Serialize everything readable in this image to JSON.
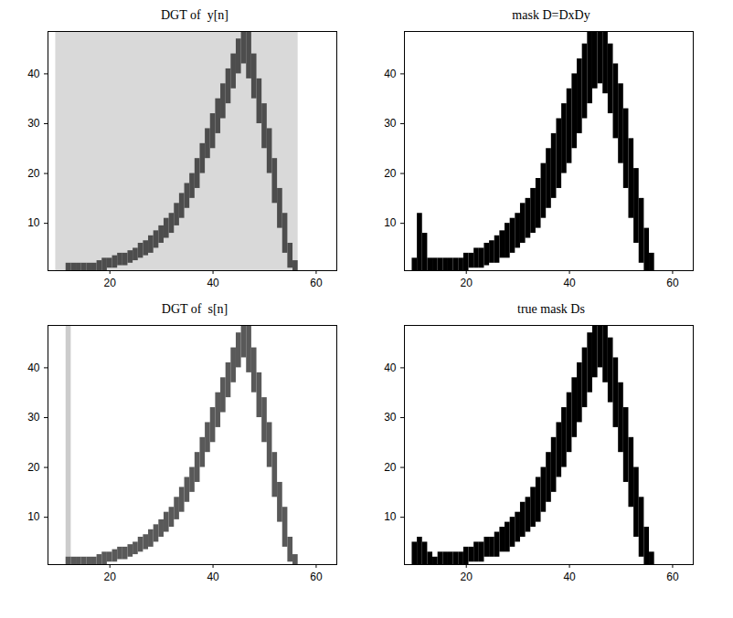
{
  "chart_data": [
    {
      "type": "heatmap",
      "title": "DGT of  y[n]",
      "xlim": [
        8,
        64
      ],
      "ylim": [
        0.5,
        48.5
      ],
      "xticks": [
        20,
        40,
        60
      ],
      "yticks": [
        10,
        20,
        30,
        40
      ],
      "zlim": [
        0,
        1
      ],
      "cells": [
        [
          9.5,
          56.5,
          0.5,
          48.5,
          0.15
        ],
        [
          11.5,
          12.5,
          0.5,
          2,
          0.7
        ],
        [
          12.5,
          13.5,
          0.5,
          2,
          0.7
        ],
        [
          13.5,
          14.5,
          0.5,
          2,
          0.7
        ],
        [
          14.5,
          15.5,
          0.5,
          2,
          0.7
        ],
        [
          15.5,
          16.5,
          0.5,
          2,
          0.7
        ],
        [
          16.5,
          17.5,
          0.5,
          2,
          0.7
        ],
        [
          17.5,
          18.5,
          0.5,
          2.5,
          0.7
        ],
        [
          18.5,
          19.5,
          0.5,
          3,
          0.7
        ],
        [
          19.5,
          20.5,
          1,
          3,
          0.7
        ],
        [
          20.5,
          21.5,
          1,
          3.5,
          0.7
        ],
        [
          21.5,
          22.5,
          1.5,
          4,
          0.7
        ],
        [
          22.5,
          23.5,
          1.5,
          4,
          0.7
        ],
        [
          23.5,
          24.5,
          2,
          4.5,
          0.7
        ],
        [
          24.5,
          25.5,
          2.5,
          5,
          0.7
        ],
        [
          25.5,
          26.5,
          3,
          6,
          0.7
        ],
        [
          26.5,
          27.5,
          3.5,
          6.5,
          0.7
        ],
        [
          27.5,
          28.5,
          4,
          7.5,
          0.7
        ],
        [
          28.5,
          29.5,
          5,
          8.5,
          0.7
        ],
        [
          29.5,
          30.5,
          6,
          9.5,
          0.7
        ],
        [
          30.5,
          31.5,
          7,
          11,
          0.7
        ],
        [
          31.5,
          32.5,
          8,
          12,
          0.7
        ],
        [
          32.5,
          33.5,
          9.5,
          14,
          0.7
        ],
        [
          33.5,
          34.5,
          11,
          16,
          0.7
        ],
        [
          34.5,
          35.5,
          13,
          18,
          0.7
        ],
        [
          35.5,
          36.5,
          15,
          20,
          0.7
        ],
        [
          36.5,
          37.5,
          17,
          23,
          0.7
        ],
        [
          37.5,
          38.5,
          20,
          26,
          0.7
        ],
        [
          38.5,
          39.5,
          23,
          29,
          0.7
        ],
        [
          39.5,
          40.5,
          25,
          32,
          0.7
        ],
        [
          40.5,
          41.5,
          28,
          35,
          0.7
        ],
        [
          41.5,
          42.5,
          31,
          38,
          0.7
        ],
        [
          42.5,
          43.5,
          34,
          41,
          0.7
        ],
        [
          43.5,
          44.5,
          37,
          44,
          0.7
        ],
        [
          44.5,
          45.5,
          40,
          47,
          0.7
        ],
        [
          45.5,
          46.5,
          42,
          48.5,
          0.7
        ],
        [
          46.5,
          47.5,
          39,
          48.5,
          0.7
        ],
        [
          47.5,
          48.5,
          35,
          44,
          0.7
        ],
        [
          48.5,
          49.5,
          30,
          39,
          0.7
        ],
        [
          49.5,
          50.5,
          25,
          34,
          0.7
        ],
        [
          50.5,
          51.5,
          20,
          29,
          0.7
        ],
        [
          51.5,
          52.5,
          14,
          23,
          0.7
        ],
        [
          52.5,
          53.5,
          9,
          17,
          0.7
        ],
        [
          53.5,
          54.5,
          4,
          12,
          0.7
        ],
        [
          54.5,
          55.5,
          1,
          6,
          0.7
        ],
        [
          55.5,
          56.5,
          0.5,
          2.5,
          0.7
        ]
      ]
    },
    {
      "type": "mask",
      "title": "mask D=DxDy",
      "xlim": [
        8,
        64
      ],
      "ylim": [
        0.5,
        48.5
      ],
      "xticks": [
        20,
        40,
        60
      ],
      "yticks": [
        10,
        20,
        30,
        40
      ],
      "color": "#000000",
      "cells": [
        [
          10,
          0.5,
          3
        ],
        [
          11,
          0.5,
          12
        ],
        [
          12,
          0.5,
          8
        ],
        [
          13,
          0.5,
          3
        ],
        [
          14,
          0.5,
          3
        ],
        [
          15,
          0.5,
          3
        ],
        [
          16,
          0.5,
          3
        ],
        [
          17,
          0.5,
          3
        ],
        [
          18,
          0.5,
          3
        ],
        [
          19,
          0.5,
          3
        ],
        [
          20,
          0.5,
          4
        ],
        [
          21,
          1,
          4
        ],
        [
          22,
          1,
          5
        ],
        [
          23,
          1,
          5
        ],
        [
          24,
          1.5,
          6
        ],
        [
          25,
          2,
          6.5
        ],
        [
          26,
          2,
          7.5
        ],
        [
          27,
          3,
          8.5
        ],
        [
          28,
          3,
          10
        ],
        [
          29,
          4,
          11
        ],
        [
          30,
          5,
          12
        ],
        [
          31,
          6,
          14
        ],
        [
          32,
          7,
          15
        ],
        [
          33,
          8,
          17
        ],
        [
          34,
          9,
          19
        ],
        [
          35,
          11,
          22
        ],
        [
          36,
          13,
          25
        ],
        [
          37,
          15,
          28
        ],
        [
          38,
          17,
          31
        ],
        [
          39,
          20,
          34
        ],
        [
          40,
          22,
          37
        ],
        [
          41,
          25,
          40
        ],
        [
          42,
          28,
          43
        ],
        [
          43,
          31,
          46
        ],
        [
          44,
          34,
          48.5
        ],
        [
          45,
          37,
          48.5
        ],
        [
          46,
          38,
          48.5
        ],
        [
          47,
          36,
          48.5
        ],
        [
          48,
          32,
          46
        ],
        [
          49,
          27,
          42
        ],
        [
          50,
          22,
          38
        ],
        [
          51,
          17,
          33
        ],
        [
          52,
          11,
          27
        ],
        [
          53,
          6,
          21
        ],
        [
          54,
          2,
          15
        ],
        [
          55,
          0.5,
          9
        ],
        [
          56,
          0.5,
          4
        ]
      ]
    },
    {
      "type": "heatmap",
      "title": "DGT of  s[n]",
      "xlim": [
        8,
        64
      ],
      "ylim": [
        0.5,
        48.5
      ],
      "xticks": [
        20,
        40,
        60
      ],
      "yticks": [
        10,
        20,
        30,
        40
      ],
      "zlim": [
        0,
        1
      ],
      "cells": [
        [
          11.5,
          12.5,
          0.5,
          48.5,
          0.2
        ],
        [
          11.5,
          12.5,
          0.5,
          2,
          0.65
        ],
        [
          12.5,
          13.5,
          0.5,
          2,
          0.65
        ],
        [
          13.5,
          14.5,
          0.5,
          2,
          0.65
        ],
        [
          14.5,
          15.5,
          0.5,
          2,
          0.65
        ],
        [
          15.5,
          16.5,
          0.5,
          2,
          0.65
        ],
        [
          16.5,
          17.5,
          0.5,
          2,
          0.65
        ],
        [
          17.5,
          18.5,
          0.5,
          2.5,
          0.65
        ],
        [
          18.5,
          19.5,
          0.5,
          3,
          0.65
        ],
        [
          19.5,
          20.5,
          1,
          3,
          0.65
        ],
        [
          20.5,
          21.5,
          1,
          3.5,
          0.65
        ],
        [
          21.5,
          22.5,
          1.5,
          4,
          0.65
        ],
        [
          22.5,
          23.5,
          1.5,
          4,
          0.65
        ],
        [
          23.5,
          24.5,
          2,
          4.5,
          0.65
        ],
        [
          24.5,
          25.5,
          2.5,
          5,
          0.65
        ],
        [
          25.5,
          26.5,
          3,
          6,
          0.65
        ],
        [
          26.5,
          27.5,
          3.5,
          6.5,
          0.65
        ],
        [
          27.5,
          28.5,
          4,
          7.5,
          0.65
        ],
        [
          28.5,
          29.5,
          5,
          8.5,
          0.65
        ],
        [
          29.5,
          30.5,
          6,
          9.5,
          0.65
        ],
        [
          30.5,
          31.5,
          7,
          11,
          0.65
        ],
        [
          31.5,
          32.5,
          8,
          12,
          0.65
        ],
        [
          32.5,
          33.5,
          9.5,
          14,
          0.65
        ],
        [
          33.5,
          34.5,
          11,
          16,
          0.65
        ],
        [
          34.5,
          35.5,
          13,
          18,
          0.65
        ],
        [
          35.5,
          36.5,
          15,
          20,
          0.65
        ],
        [
          36.5,
          37.5,
          17,
          23,
          0.65
        ],
        [
          37.5,
          38.5,
          20,
          26,
          0.65
        ],
        [
          38.5,
          39.5,
          23,
          29,
          0.65
        ],
        [
          39.5,
          40.5,
          25,
          32,
          0.65
        ],
        [
          40.5,
          41.5,
          28,
          35,
          0.65
        ],
        [
          41.5,
          42.5,
          31,
          38,
          0.65
        ],
        [
          42.5,
          43.5,
          34,
          41,
          0.65
        ],
        [
          43.5,
          44.5,
          37,
          44,
          0.65
        ],
        [
          44.5,
          45.5,
          40,
          47,
          0.65
        ],
        [
          45.5,
          46.5,
          42,
          48.5,
          0.65
        ],
        [
          46.5,
          47.5,
          39,
          48.5,
          0.65
        ],
        [
          47.5,
          48.5,
          35,
          44,
          0.65
        ],
        [
          48.5,
          49.5,
          30,
          39,
          0.65
        ],
        [
          49.5,
          50.5,
          25,
          34,
          0.65
        ],
        [
          50.5,
          51.5,
          20,
          29,
          0.65
        ],
        [
          51.5,
          52.5,
          14,
          23,
          0.65
        ],
        [
          52.5,
          53.5,
          9,
          17,
          0.65
        ],
        [
          53.5,
          54.5,
          4,
          12,
          0.65
        ],
        [
          54.5,
          55.5,
          1,
          6,
          0.65
        ],
        [
          55.5,
          56.5,
          0.5,
          2.5,
          0.65
        ]
      ]
    },
    {
      "type": "mask",
      "title": "true mask Ds",
      "xlim": [
        8,
        64
      ],
      "ylim": [
        0.5,
        48.5
      ],
      "xticks": [
        20,
        40,
        60
      ],
      "yticks": [
        10,
        20,
        30,
        40
      ],
      "color": "#000000",
      "cells": [
        [
          10,
          0.5,
          5
        ],
        [
          11,
          0.5,
          6
        ],
        [
          12,
          0.5,
          5
        ],
        [
          13,
          0.5,
          3
        ],
        [
          14,
          0.5,
          2
        ],
        [
          15,
          0.5,
          3
        ],
        [
          16,
          0.5,
          3
        ],
        [
          17,
          0.5,
          3
        ],
        [
          18,
          0.5,
          3
        ],
        [
          19,
          0.5,
          3
        ],
        [
          20,
          0.5,
          4
        ],
        [
          21,
          1,
          4
        ],
        [
          22,
          1,
          5
        ],
        [
          23,
          1,
          5
        ],
        [
          24,
          2,
          6
        ],
        [
          25,
          2,
          6
        ],
        [
          26,
          2,
          7
        ],
        [
          27,
          3,
          8
        ],
        [
          28,
          3,
          9
        ],
        [
          29,
          4,
          10
        ],
        [
          30,
          5,
          11
        ],
        [
          31,
          6,
          13
        ],
        [
          32,
          7,
          14
        ],
        [
          33,
          8,
          16
        ],
        [
          34,
          9,
          18
        ],
        [
          35,
          11,
          20
        ],
        [
          36,
          13,
          23
        ],
        [
          37,
          15,
          26
        ],
        [
          38,
          18,
          29
        ],
        [
          39,
          20,
          32
        ],
        [
          40,
          23,
          35
        ],
        [
          41,
          26,
          38
        ],
        [
          42,
          29,
          41
        ],
        [
          43,
          32,
          44
        ],
        [
          44,
          35,
          47
        ],
        [
          45,
          38,
          48.5
        ],
        [
          46,
          40,
          48.5
        ],
        [
          47,
          37,
          48.5
        ],
        [
          48,
          33,
          46
        ],
        [
          49,
          28,
          42
        ],
        [
          50,
          23,
          37
        ],
        [
          51,
          17,
          32
        ],
        [
          52,
          12,
          26
        ],
        [
          53,
          6,
          20
        ],
        [
          54,
          2,
          14
        ],
        [
          55,
          0.5,
          8
        ],
        [
          56,
          0.5,
          3
        ]
      ]
    }
  ]
}
